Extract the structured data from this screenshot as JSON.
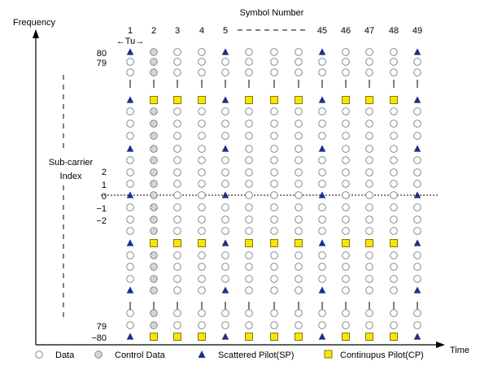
{
  "title": "Symbol Number",
  "axes": {
    "y_label": "Frequency",
    "x_label": "Time",
    "subcarrier_label_line1": "Sub-carrier",
    "subcarrier_label_line2": "Index"
  },
  "symbol_numbers": [
    "1",
    "2",
    "3",
    "4",
    "5",
    "45",
    "46",
    "47",
    "48",
    "49"
  ],
  "tu_label": "←Tu→",
  "subcarrier_ticks": [
    "80",
    "79",
    "2",
    "1",
    "0",
    "−1",
    "−2",
    "79",
    "−80"
  ],
  "legend": {
    "data": "Data",
    "control": "Control Data",
    "sp": "Scattered Pilot(SP)",
    "cp": "Continupus Pilot(CP)"
  },
  "colors": {
    "scattered_pilot": "#1f2f8a",
    "continual_pilot_fill": "#f7e600",
    "continual_pilot_stroke": "#7a6a00",
    "control_fill": "#9a9a9a",
    "circle_stroke": "#7a7a7a",
    "axis": "#000000"
  }
}
